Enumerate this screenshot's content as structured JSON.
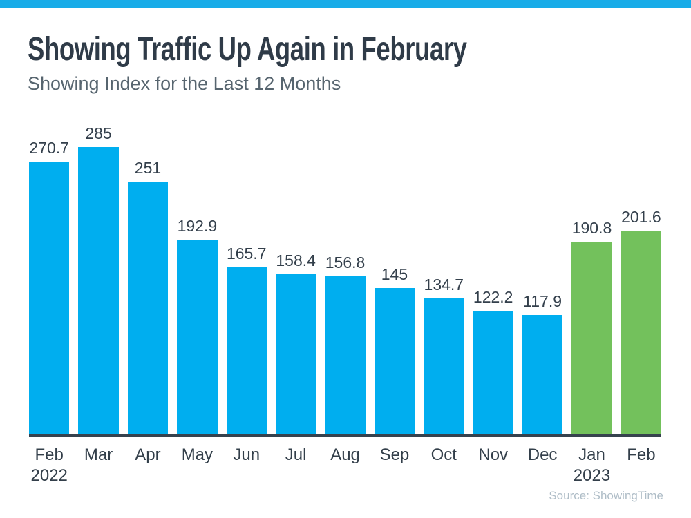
{
  "page": {
    "title": "Showing Traffic Up Again in February",
    "subtitle": "Showing Index for the Last 12 Months",
    "source": "Source: ShowingTime"
  },
  "colors": {
    "top_strip": "#18ACE8",
    "bar_blue": "#00AEEF",
    "bar_green": "#73C15C",
    "axis_line": "#36424E",
    "title_text": "#2F3B48",
    "subtitle_text": "#57656F",
    "label_text": "#333F4B",
    "source_text": "#AFBDC7"
  },
  "chart_data": {
    "type": "bar",
    "title": "Showing Traffic Up Again in February",
    "subtitle": "Showing Index for the Last 12 Months",
    "categories": [
      "Feb 2022",
      "Mar",
      "Apr",
      "May",
      "Jun",
      "Jul",
      "Aug",
      "Sep",
      "Oct",
      "Nov",
      "Dec",
      "Jan 2023",
      "Feb"
    ],
    "tick_labels": [
      {
        "month": "Feb",
        "year": "2022"
      },
      {
        "month": "Mar",
        "year": ""
      },
      {
        "month": "Apr",
        "year": ""
      },
      {
        "month": "May",
        "year": ""
      },
      {
        "month": "Jun",
        "year": ""
      },
      {
        "month": "Jul",
        "year": ""
      },
      {
        "month": "Aug",
        "year": ""
      },
      {
        "month": "Sep",
        "year": ""
      },
      {
        "month": "Oct",
        "year": ""
      },
      {
        "month": "Nov",
        "year": ""
      },
      {
        "month": "Dec",
        "year": ""
      },
      {
        "month": "Jan",
        "year": "2023"
      },
      {
        "month": "Feb",
        "year": ""
      }
    ],
    "values": [
      270.7,
      285,
      251,
      192.9,
      165.7,
      158.4,
      156.8,
      145,
      134.7,
      122.2,
      117.9,
      190.8,
      201.6
    ],
    "value_labels": [
      "270.7",
      "285",
      "251",
      "192.9",
      "165.7",
      "158.4",
      "156.8",
      "145",
      "134.7",
      "122.2",
      "117.9",
      "190.8",
      "201.6"
    ],
    "bar_colors": [
      "blue",
      "blue",
      "blue",
      "blue",
      "blue",
      "blue",
      "blue",
      "blue",
      "blue",
      "blue",
      "blue",
      "green",
      "green"
    ],
    "highlight_note": "Jan 2023 and Feb 2023 bars are green; all 2022 bars are blue",
    "ylim": [
      0,
      285
    ],
    "xlabel": "",
    "ylabel": "",
    "grid": false,
    "legend": false,
    "data_labels": true,
    "source": "Source: ShowingTime"
  }
}
